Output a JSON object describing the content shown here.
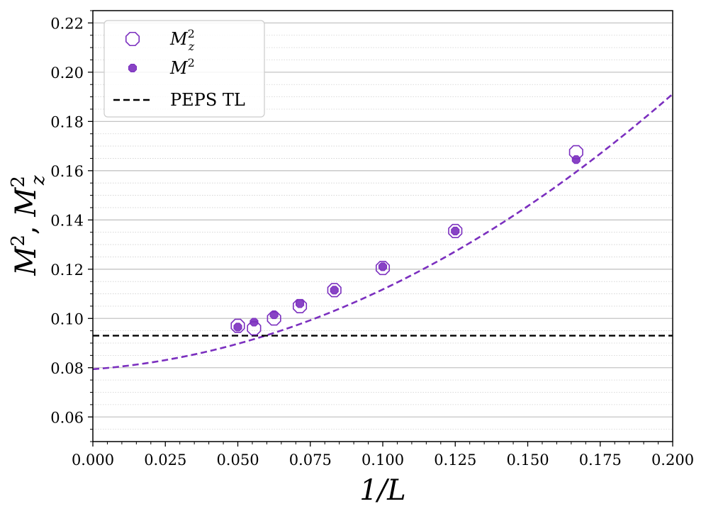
{
  "chart_data": {
    "type": "scatter",
    "xlabel": "1/L",
    "ylabel": "M², M_z²",
    "ylabel_parts": {
      "m1": "M",
      "sup1": "2",
      "sep": ", ",
      "m2": "M",
      "sub2": "z",
      "sup2": "2"
    },
    "xlim": [
      0.0,
      0.2
    ],
    "ylim": [
      0.05,
      0.225
    ],
    "x_ticks": [
      0.0,
      0.025,
      0.05,
      0.075,
      0.1,
      0.125,
      0.15,
      0.175,
      0.2
    ],
    "x_tick_labels": [
      "0.000",
      "0.025",
      "0.050",
      "0.075",
      "0.100",
      "0.125",
      "0.150",
      "0.175",
      "0.200"
    ],
    "y_ticks": [
      0.06,
      0.08,
      0.1,
      0.12,
      0.14,
      0.16,
      0.18,
      0.2,
      0.22
    ],
    "y_tick_labels": [
      "0.06",
      "0.08",
      "0.10",
      "0.12",
      "0.14",
      "0.16",
      "0.18",
      "0.20",
      "0.22"
    ],
    "grid": {
      "major_y": true,
      "minor_y": true,
      "minor_y_step": 0.005
    },
    "legend_position": "top-left",
    "colors": {
      "series": "#7b2fbf",
      "peps": "#000000"
    },
    "series": [
      {
        "name": "M_z²",
        "legend_label": {
          "base": "M",
          "sub": "z",
          "sup": "2"
        },
        "marker": "open-octagon",
        "x": [
          0.05,
          0.0556,
          0.0625,
          0.0714,
          0.0833,
          0.1,
          0.125,
          0.1667
        ],
        "y": [
          0.097,
          0.096,
          0.1,
          0.105,
          0.1115,
          0.1205,
          0.1355,
          0.1675
        ]
      },
      {
        "name": "M²",
        "legend_label": {
          "base": "M",
          "sup": "2"
        },
        "marker": "filled-octagon",
        "x": [
          0.05,
          0.0556,
          0.0625,
          0.0714,
          0.0833,
          0.1,
          0.125,
          0.1667
        ],
        "y": [
          0.0965,
          0.0985,
          0.1015,
          0.106,
          0.1115,
          0.121,
          0.1355,
          0.1645
        ]
      }
    ],
    "fit": {
      "style": "dashed",
      "a": 0.0794,
      "b": 0.0888,
      "c": 2.35,
      "x_range": [
        0.0,
        0.2
      ]
    },
    "hline": {
      "name": "PEPS TL",
      "y": 0.093,
      "style": "dashed"
    }
  }
}
